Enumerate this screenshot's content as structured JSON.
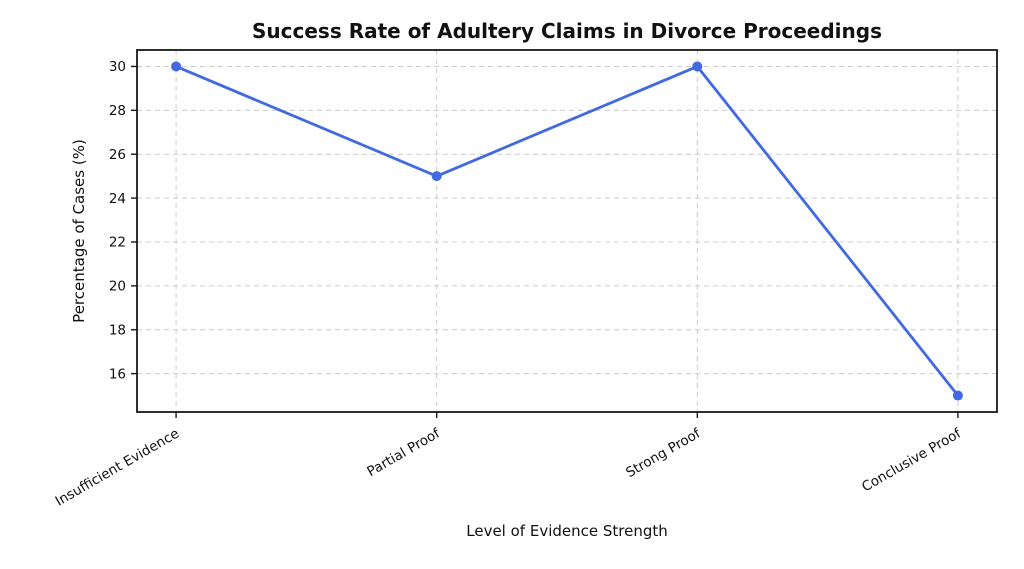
{
  "chart_data": {
    "type": "line",
    "title": "Success Rate of Adultery Claims in Divorce Proceedings",
    "xlabel": "Level of Evidence Strength",
    "ylabel": "Percentage of Cases (%)",
    "categories": [
      "Insufficient Evidence",
      "Partial Proof",
      "Strong Proof",
      "Conclusive Proof"
    ],
    "values": [
      30,
      25,
      30,
      15
    ],
    "yticks": [
      16,
      18,
      20,
      22,
      24,
      26,
      28,
      30
    ],
    "ylim": [
      14.25,
      30.75
    ],
    "x_tick_rotation_deg": 30,
    "legend": "none",
    "grid": "dashed",
    "style": {
      "line_color": "#4169E1",
      "marker": "circle",
      "grid_color": "#cccccc",
      "spine_color": "#1a1a1a",
      "background": "#ffffff"
    }
  }
}
